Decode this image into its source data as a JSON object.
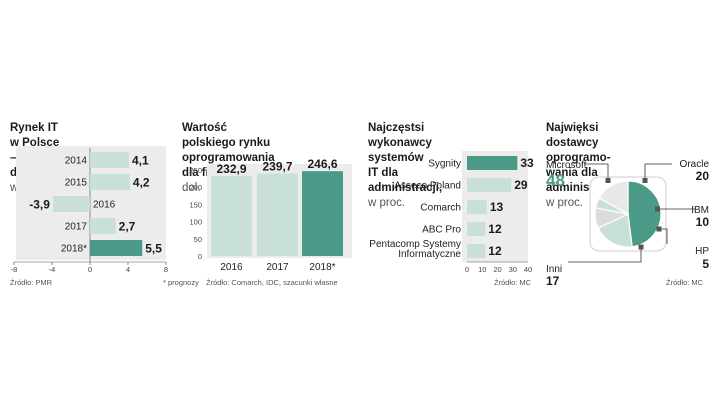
{
  "colors": {
    "accent": "#4a9a87",
    "light": "#c9e0d9",
    "bg": "#ececec",
    "axis": "#888888"
  },
  "panel1": {
    "title": "Rynek IT w Polsce – dynamika,",
    "unit": "w proc.",
    "source": "Źródło: PMR"
  },
  "panel2": {
    "title_l1": "Wartość polskiego rynku",
    "title_l2": "oprogramowania dla firm,",
    "unit": "w mln dol.",
    "note": "* prognozy",
    "source": "Źródło: Comarch, IDC, szacunki własne"
  },
  "panel3": {
    "title_l1": "Najczęstsi wykonawcy systemów",
    "title_l2": "IT dla administracji,",
    "unit": "w proc.",
    "source": "Źródło: MC"
  },
  "panel4": {
    "title_l1": "Najwięksi dostawcy oprogramo-",
    "title_l2": "wania dla administracji,",
    "unit": "w proc.",
    "source": "Źródło: MC"
  },
  "chart_data": [
    {
      "type": "bar",
      "orientation": "horizontal",
      "categories": [
        "2014",
        "2015",
        "2016",
        "2017",
        "2018*"
      ],
      "values": [
        4.1,
        4.2,
        -3.9,
        2.7,
        5.5
      ],
      "value_labels": [
        "4,1",
        "4,2",
        "-3,9",
        "2,7",
        "5,5"
      ],
      "xlim": [
        -8,
        8
      ],
      "xticks": [
        -8,
        -4,
        0,
        4,
        8
      ],
      "highlight_index": 4
    },
    {
      "type": "bar",
      "orientation": "vertical",
      "categories": [
        "2016",
        "2017",
        "2018*"
      ],
      "values": [
        232.9,
        239.7,
        246.6
      ],
      "value_labels": [
        "232,9",
        "239,7",
        "246,6"
      ],
      "ylim": [
        0,
        250
      ],
      "yticks": [
        0,
        50,
        100,
        150,
        200,
        250
      ],
      "highlight_index": 2
    },
    {
      "type": "bar",
      "orientation": "horizontal",
      "categories": [
        "Sygnity",
        "Asseco Poland",
        "Comarch",
        "ABC Pro",
        "Pentacomp Systemy Informatyczne"
      ],
      "category_lines": [
        [
          "Sygnity"
        ],
        [
          "Asseco Poland"
        ],
        [
          "Comarch"
        ],
        [
          "ABC Pro"
        ],
        [
          "Pentacomp Systemy",
          "Informatyczne"
        ]
      ],
      "values": [
        33,
        29,
        13,
        12,
        12
      ],
      "value_labels": [
        "33",
        "29",
        "13",
        "12",
        "12"
      ],
      "xlim": [
        0,
        40
      ],
      "xticks": [
        0,
        10,
        20,
        30,
        40
      ],
      "highlight_index": 0
    },
    {
      "type": "pie",
      "slices": [
        {
          "name": "Microsoft",
          "value": 48
        },
        {
          "name": "Oracle",
          "value": 20
        },
        {
          "name": "IBM",
          "value": 10
        },
        {
          "name": "HP",
          "value": 5
        },
        {
          "name": "Inni",
          "value": 17
        }
      ]
    }
  ]
}
